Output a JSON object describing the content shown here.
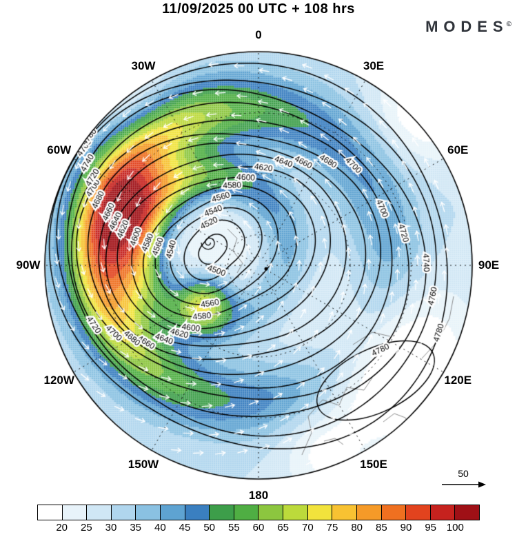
{
  "header": {
    "title": "11/09/2025  00 UTC  + 108 hrs",
    "brand": "MODES",
    "brand_mark": "©"
  },
  "chart_data": {
    "type": "heatmap",
    "subtype": "north-polar-stereographic-weather-map",
    "title": "11/09/2025 00 UTC + 108 hrs",
    "region": "Northern Hemisphere polar view, 0 longitude at top",
    "shaded_field": "wind speed (filled shading, colorbar scale)",
    "contour_field": "geopotential height (black contour lines)",
    "contour_interval": 20,
    "contour_levels": [
      4500,
      4520,
      4540,
      4560,
      4580,
      4600,
      4620,
      4640,
      4660,
      4680,
      4700,
      4720,
      4740,
      4760,
      4780
    ],
    "vortex_minimum_label": "4500",
    "outermost_contour_label": "4780",
    "colorbar": {
      "ticks": [
        20,
        25,
        30,
        35,
        40,
        45,
        50,
        55,
        60,
        65,
        70,
        75,
        80,
        85,
        90,
        95,
        100
      ],
      "colors": [
        "#ffffff",
        "#e8f3fa",
        "#d0e7f5",
        "#b0d6ee",
        "#8ac1e2",
        "#5ea3d2",
        "#3a7fc0",
        "#3d9e4a",
        "#4fae43",
        "#8cc63f",
        "#bcda3b",
        "#f2e33c",
        "#f8c232",
        "#f59a28",
        "#ef7020",
        "#e2431e",
        "#c6221e",
        "#9f1016"
      ]
    },
    "longitude_labels": [
      {
        "label": "0",
        "azimuth_deg": 0
      },
      {
        "label": "30E",
        "azimuth_deg": 30
      },
      {
        "label": "60E",
        "azimuth_deg": 60
      },
      {
        "label": "90E",
        "azimuth_deg": 90
      },
      {
        "label": "120E",
        "azimuth_deg": 120
      },
      {
        "label": "150E",
        "azimuth_deg": 150
      },
      {
        "label": "180",
        "azimuth_deg": 180
      },
      {
        "label": "150W",
        "azimuth_deg": 210
      },
      {
        "label": "120W",
        "azimuth_deg": 240
      },
      {
        "label": "90W",
        "azimuth_deg": 270
      },
      {
        "label": "60W",
        "azimuth_deg": 300
      },
      {
        "label": "30W",
        "azimuth_deg": 330
      }
    ],
    "wind_vectors": {
      "color": "#ffffff",
      "reference_label": "50"
    }
  }
}
